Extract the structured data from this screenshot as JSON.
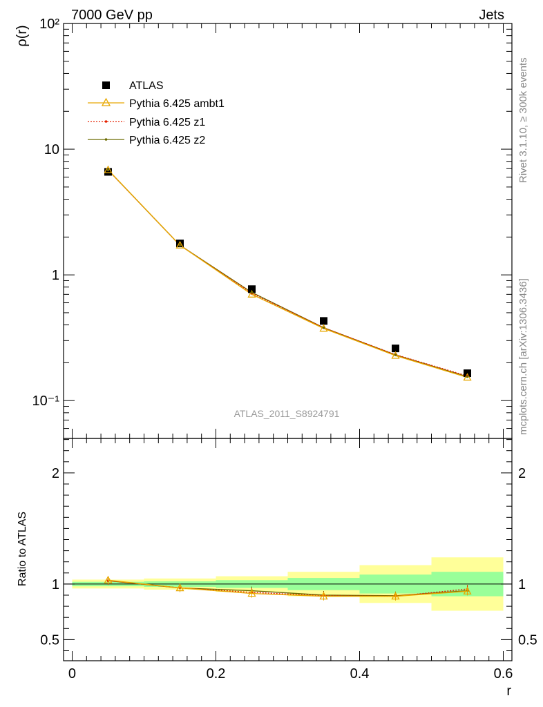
{
  "header": {
    "left": "7000 GeV pp",
    "right": "Jets"
  },
  "side_labels": {
    "top": "Rivet 3.1.10, ≥ 300k events",
    "bottom": "mcplots.cern.ch [arXiv:1306.3436]"
  },
  "chart_data": [
    {
      "type": "scatter",
      "panel": "main",
      "ylabel": "ρ(r)",
      "yscale": "log",
      "ylim": [
        0.05,
        100
      ],
      "xlim": [
        -0.012,
        0.612
      ],
      "y_ticks": [
        {
          "value": 0.1,
          "label": "10⁻¹"
        },
        {
          "value": 1,
          "label": "1"
        },
        {
          "value": 10,
          "label": "10"
        },
        {
          "value": 100,
          "label": "10²"
        }
      ],
      "watermark": "ATLAS_2011_S8924791",
      "legend_position": "top-left",
      "x": [
        0.05,
        0.15,
        0.25,
        0.35,
        0.45,
        0.55
      ],
      "series": [
        {
          "name": "ATLAS",
          "color": "#000000",
          "marker": "square",
          "values": [
            6.6,
            1.78,
            0.77,
            0.43,
            0.26,
            0.165
          ]
        },
        {
          "name": "Pythia 6.425 ambt1",
          "color": "#e8a800",
          "marker": "open-triangle",
          "values": [
            6.85,
            1.72,
            0.7,
            0.375,
            0.228,
            0.153
          ]
        },
        {
          "name": "Pythia 6.425 z1",
          "color": "#e52200",
          "marker": "dot",
          "dashed": true,
          "values": [
            6.82,
            1.72,
            0.715,
            0.38,
            0.232,
            0.157
          ]
        },
        {
          "name": "Pythia 6.425 z2",
          "color": "#6b6b00",
          "marker": "dot",
          "values": [
            6.83,
            1.72,
            0.725,
            0.38,
            0.231,
            0.155
          ]
        }
      ]
    },
    {
      "type": "line",
      "panel": "ratio",
      "ylabel": "Ratio to ATLAS",
      "xlabel": "r",
      "ylim": [
        0.31,
        2.31
      ],
      "xlim": [
        -0.012,
        0.612
      ],
      "x_ticks": [
        0,
        0.2,
        0.4,
        0.6
      ],
      "x_tick_labels": [
        "0",
        "0.2",
        "0.4",
        "0.6"
      ],
      "y_ticks": [
        0.5,
        1,
        2
      ],
      "y_tick_labels": [
        "0.5",
        "1",
        "2"
      ],
      "bins": [
        {
          "lo": 0.0,
          "hi": 0.1,
          "yellow": [
            0.96,
            1.04
          ],
          "green": [
            0.98,
            1.02
          ]
        },
        {
          "lo": 0.1,
          "hi": 0.2,
          "yellow": [
            0.95,
            1.05
          ],
          "green": [
            0.975,
            1.025
          ]
        },
        {
          "lo": 0.2,
          "hi": 0.3,
          "yellow": [
            0.93,
            1.07
          ],
          "green": [
            0.965,
            1.035
          ]
        },
        {
          "lo": 0.3,
          "hi": 0.4,
          "yellow": [
            0.89,
            1.11
          ],
          "green": [
            0.945,
            1.055
          ]
        },
        {
          "lo": 0.4,
          "hi": 0.5,
          "yellow": [
            0.83,
            1.17
          ],
          "green": [
            0.915,
            1.085
          ]
        },
        {
          "lo": 0.5,
          "hi": 0.6,
          "yellow": [
            0.76,
            1.24
          ],
          "green": [
            0.89,
            1.11
          ]
        }
      ],
      "x": [
        0.05,
        0.15,
        0.25,
        0.35,
        0.45,
        0.55
      ],
      "series": [
        {
          "name": "Pythia 6.425 ambt1",
          "color": "#e8a800",
          "values": [
            1.035,
            0.965,
            0.915,
            0.89,
            0.89,
            0.935
          ]
        },
        {
          "name": "Pythia 6.425 z1",
          "color": "#e52200",
          "dashed": true,
          "values": [
            1.03,
            0.965,
            0.925,
            0.895,
            0.89,
            0.955
          ]
        },
        {
          "name": "Pythia 6.425 z2",
          "color": "#6b6b00",
          "values": [
            1.03,
            0.965,
            0.94,
            0.9,
            0.895,
            0.94
          ]
        }
      ]
    }
  ]
}
